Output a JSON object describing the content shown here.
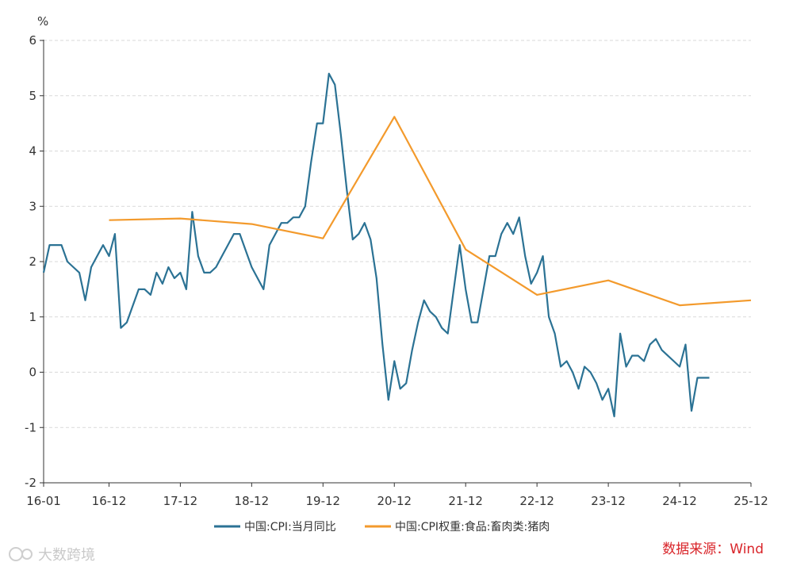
{
  "chart_data": {
    "type": "line",
    "ylabel": "%",
    "ylim": [
      -2,
      6
    ],
    "yticks": [
      -2,
      -1,
      0,
      1,
      2,
      3,
      4,
      5,
      6
    ],
    "xticks": [
      "16-01",
      "16-12",
      "17-12",
      "18-12",
      "19-12",
      "20-12",
      "21-12",
      "22-12",
      "23-12",
      "24-12",
      "25-12"
    ],
    "grid": "horizontal-dashed",
    "legend_position": "bottom",
    "series": [
      {
        "name": "中国:CPI:当月同比",
        "color": "#2b7294",
        "monthly_from": "16-01",
        "values": [
          1.8,
          2.3,
          2.3,
          2.3,
          2.0,
          1.9,
          1.8,
          1.3,
          1.9,
          2.1,
          2.3,
          2.1,
          2.5,
          0.8,
          0.9,
          1.2,
          1.5,
          1.5,
          1.4,
          1.8,
          1.6,
          1.9,
          1.7,
          1.8,
          1.5,
          2.9,
          2.1,
          1.8,
          1.8,
          1.9,
          2.1,
          2.3,
          2.5,
          2.5,
          2.2,
          1.9,
          1.7,
          1.5,
          2.3,
          2.5,
          2.7,
          2.7,
          2.8,
          2.8,
          3.0,
          3.8,
          4.5,
          4.5,
          5.4,
          5.2,
          4.3,
          3.3,
          2.4,
          2.5,
          2.7,
          2.4,
          1.7,
          0.5,
          -0.5,
          0.2,
          -0.3,
          -0.2,
          0.4,
          0.9,
          1.3,
          1.1,
          1.0,
          0.8,
          0.7,
          1.5,
          2.3,
          1.5,
          0.9,
          0.9,
          1.5,
          2.1,
          2.1,
          2.5,
          2.7,
          2.5,
          2.8,
          2.1,
          1.6,
          1.8,
          2.1,
          1.0,
          0.7,
          0.1,
          0.2,
          0.0,
          -0.3,
          0.1,
          0.0,
          -0.2,
          -0.5,
          -0.3,
          -0.8,
          0.7,
          0.1,
          0.3,
          0.3,
          0.2,
          0.5,
          0.6,
          0.4,
          0.3,
          0.2,
          0.1,
          0.5,
          -0.7,
          -0.1,
          -0.1,
          -0.1
        ]
      },
      {
        "name": "中国:CPI权重:食品:畜肉类:猪肉",
        "color": "#f39a2c",
        "points": [
          {
            "x": "16-12",
            "y": 2.75
          },
          {
            "x": "17-12",
            "y": 2.78
          },
          {
            "x": "18-12",
            "y": 2.68
          },
          {
            "x": "19-12",
            "y": 2.42
          },
          {
            "x": "20-12",
            "y": 4.62
          },
          {
            "x": "21-12",
            "y": 2.22
          },
          {
            "x": "22-12",
            "y": 1.4
          },
          {
            "x": "23-12",
            "y": 1.66
          },
          {
            "x": "24-12",
            "y": 1.21
          },
          {
            "x": "25-12",
            "y": 1.3
          }
        ]
      }
    ]
  },
  "source": "数据来源：Wind",
  "watermark": "大数跨境"
}
